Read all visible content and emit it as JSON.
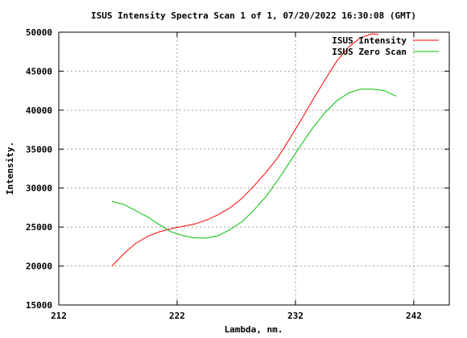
{
  "chart_data": {
    "type": "line",
    "title": "ISUS Intensity Spectra Scan 1 of 1, 07/20/2022 16:30:08 (GMT)",
    "xlabel": "Lambda, nm.",
    "ylabel": "Intensity.",
    "xlim": [
      212,
      245
    ],
    "ylim": [
      15000,
      50000
    ],
    "xticks": [
      212,
      222,
      232,
      242
    ],
    "yticks": [
      15000,
      20000,
      25000,
      30000,
      35000,
      40000,
      45000,
      50000
    ],
    "grid": true,
    "legend": "top-right",
    "series": [
      {
        "name": "ISUS Intensity",
        "color": "#ff0000",
        "x": [
          216.5,
          217.5,
          218.5,
          219.5,
          220.5,
          221.5,
          222.5,
          223.5,
          224.5,
          225.5,
          226.5,
          227.5,
          228.5,
          229.5,
          230.5,
          231.5,
          232.5,
          233.5,
          234.5,
          235.5,
          236.5,
          237.5,
          238.5,
          239.0
        ],
        "y": [
          20000,
          21600,
          22900,
          23800,
          24400,
          24800,
          25100,
          25400,
          25900,
          26600,
          27500,
          28700,
          30300,
          32000,
          33900,
          36300,
          38800,
          41400,
          43900,
          46300,
          48100,
          49300,
          49800,
          49700
        ]
      },
      {
        "name": "ISUS Zero Scan",
        "color": "#00c000",
        "x": [
          216.5,
          217.5,
          218.5,
          219.5,
          220.5,
          221.5,
          222.5,
          223.5,
          224.5,
          225.5,
          226.5,
          227.5,
          228.5,
          229.5,
          230.5,
          231.5,
          232.5,
          233.5,
          234.5,
          235.5,
          236.5,
          237.5,
          238.5,
          239.5,
          240.5
        ],
        "y": [
          28300,
          27900,
          27100,
          26300,
          25300,
          24400,
          23900,
          23600,
          23600,
          23900,
          24700,
          25700,
          27200,
          28900,
          31000,
          33300,
          35600,
          37800,
          39700,
          41200,
          42200,
          42700,
          42700,
          42500,
          41800
        ]
      }
    ]
  }
}
